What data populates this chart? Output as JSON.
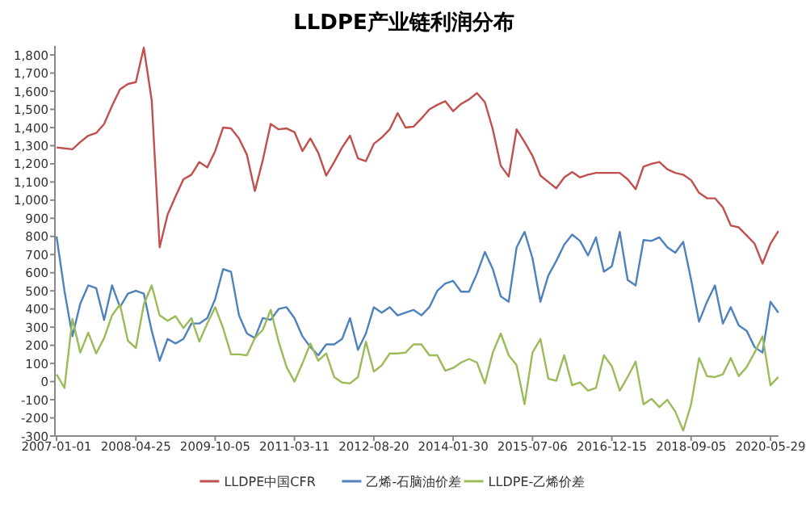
{
  "chart_data": {
    "type": "line",
    "title": "LLDPE产业链利润分布",
    "legend": "bottom",
    "categories": [
      "2007-01-01",
      null,
      null,
      null,
      null,
      null,
      null,
      null,
      null,
      null,
      "2008-04-25",
      null,
      null,
      null,
      null,
      null,
      null,
      null,
      null,
      null,
      "2009-10-05",
      null,
      null,
      null,
      null,
      null,
      null,
      null,
      null,
      null,
      "2011-03-11",
      null,
      null,
      null,
      null,
      null,
      null,
      null,
      null,
      null,
      "2012-08-20",
      null,
      null,
      null,
      null,
      null,
      null,
      null,
      null,
      null,
      "2014-01-30",
      null,
      null,
      null,
      null,
      null,
      null,
      null,
      null,
      null,
      "2015-07-06",
      null,
      null,
      null,
      null,
      null,
      null,
      null,
      null,
      null,
      "2016-12-15",
      null,
      null,
      null,
      null,
      null,
      null,
      null,
      null,
      null,
      "2018-09-05",
      null,
      null,
      null,
      null,
      null,
      null,
      null,
      null,
      null,
      "2020-05-29",
      null
    ],
    "ylim": [
      -300,
      1850
    ],
    "yticks": [
      -300,
      -200,
      -100,
      0,
      100,
      200,
      300,
      400,
      500,
      600,
      700,
      800,
      900,
      {
        "value": 1000,
        "label": "1,000"
      },
      {
        "value": 1100,
        "label": "1,100"
      },
      {
        "value": 1200,
        "label": "1,200"
      },
      {
        "value": 1300,
        "label": "1,300"
      },
      {
        "value": 1400,
        "label": "1,400"
      },
      {
        "value": 1500,
        "label": "1,500"
      },
      {
        "value": 1600,
        "label": "1,600"
      },
      {
        "value": 1700,
        "label": "1,700"
      },
      {
        "value": 1800,
        "label": "1,800"
      }
    ],
    "series": [
      {
        "name": "LLDPE中国CFR",
        "color": "#c0504d",
        "values": [
          1290,
          1285,
          1280,
          1320,
          1355,
          1370,
          1420,
          1520,
          1610,
          1640,
          1650,
          1840,
          1550,
          740,
          920,
          1020,
          1115,
          1140,
          1210,
          1180,
          1270,
          1400,
          1395,
          1340,
          1250,
          1050,
          1220,
          1420,
          1390,
          1395,
          1375,
          1270,
          1340,
          1260,
          1135,
          1210,
          1290,
          1355,
          1230,
          1215,
          1310,
          1345,
          1390,
          1480,
          1400,
          1405,
          1450,
          1500,
          1525,
          1545,
          1490,
          1530,
          1555,
          1590,
          1540,
          1390,
          1190,
          1130,
          1390,
          1320,
          1245,
          1135,
          1100,
          1065,
          1125,
          1155,
          1125,
          1140,
          1150,
          1150,
          1150,
          1150,
          1115,
          1060,
          1185,
          1200,
          1210,
          1170,
          1150,
          1140,
          1110,
          1040,
          1010,
          1010,
          960,
          860,
          850,
          805,
          760,
          650,
          760,
          830
        ]
      },
      {
        "name": "乙烯-石脑油价差",
        "color": "#4f81bd",
        "values": [
          800,
          500,
          250,
          430,
          530,
          515,
          340,
          530,
          410,
          485,
          500,
          485,
          280,
          115,
          235,
          210,
          235,
          320,
          320,
          350,
          455,
          620,
          605,
          365,
          265,
          240,
          350,
          340,
          400,
          410,
          350,
          250,
          190,
          145,
          205,
          205,
          235,
          350,
          175,
          265,
          410,
          380,
          410,
          365,
          380,
          395,
          365,
          410,
          500,
          540,
          555,
          495,
          495,
          595,
          715,
          620,
          470,
          440,
          740,
          825,
          680,
          440,
          585,
          665,
          755,
          810,
          775,
          695,
          795,
          605,
          635,
          825,
          560,
          530,
          780,
          775,
          795,
          740,
          710,
          770,
          560,
          330,
          440,
          530,
          320,
          410,
          310,
          280,
          190,
          160,
          440,
          380
        ]
      },
      {
        "name": "LLDPE-乙烯价差",
        "color": "#9bbb59",
        "values": [
          40,
          -35,
          345,
          160,
          270,
          155,
          240,
          365,
          425,
          225,
          185,
          425,
          530,
          365,
          335,
          360,
          295,
          350,
          220,
          320,
          410,
          295,
          150,
          150,
          145,
          240,
          285,
          395,
          220,
          80,
          0,
          100,
          210,
          115,
          155,
          25,
          -5,
          -10,
          25,
          220,
          55,
          90,
          155,
          155,
          160,
          205,
          205,
          145,
          145,
          60,
          75,
          105,
          125,
          105,
          -10,
          160,
          265,
          145,
          90,
          -125,
          160,
          235,
          15,
          5,
          145,
          -20,
          -5,
          -50,
          -35,
          145,
          85,
          -50,
          25,
          110,
          -125,
          -95,
          -140,
          -100,
          -165,
          -270,
          -125,
          130,
          30,
          25,
          40,
          130,
          30,
          80,
          160,
          250,
          -20,
          25
        ]
      }
    ]
  }
}
